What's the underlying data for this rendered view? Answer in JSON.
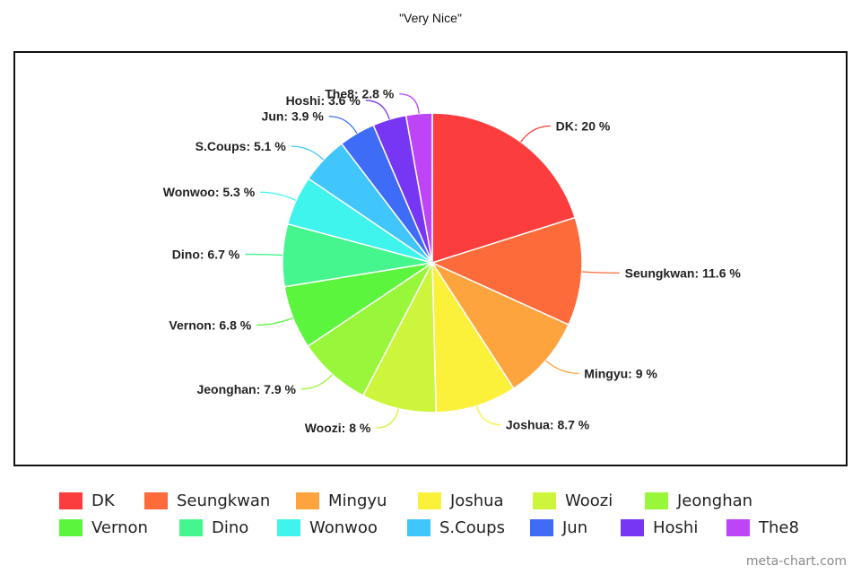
{
  "chart_data": {
    "type": "pie",
    "title": "\"Very Nice\"",
    "legend_position": "bottom",
    "slices": [
      {
        "name": "DK",
        "value": 20,
        "label": "DK: 20 %",
        "color": "#fc3d3d"
      },
      {
        "name": "Seungkwan",
        "value": 11.6,
        "label": "Seungkwan: 11.6 %",
        "color": "#fd6b3a"
      },
      {
        "name": "Mingyu",
        "value": 9,
        "label": "Mingyu: 9 %",
        "color": "#fda43f"
      },
      {
        "name": "Joshua",
        "value": 8.7,
        "label": "Joshua: 8.7 %",
        "color": "#fbf13a"
      },
      {
        "name": "Woozi",
        "value": 8,
        "label": "Woozi: 8 %",
        "color": "#ccf53b"
      },
      {
        "name": "Jeonghan",
        "value": 7.9,
        "label": "Jeonghan: 7.9 %",
        "color": "#98f73a"
      },
      {
        "name": "Vernon",
        "value": 6.8,
        "label": "Vernon: 6.8 %",
        "color": "#5cf53e"
      },
      {
        "name": "Dino",
        "value": 6.7,
        "label": "Dino: 6.7 %",
        "color": "#45f58d"
      },
      {
        "name": "Wonwoo",
        "value": 5.3,
        "label": "Wonwoo: 5.3 %",
        "color": "#3ff4ec"
      },
      {
        "name": "S.Coups",
        "value": 5.1,
        "label": "S.Coups: 5.1 %",
        "color": "#40c6fb"
      },
      {
        "name": "Jun",
        "value": 3.9,
        "label": "Jun: 3.9 %",
        "color": "#3f6cf7"
      },
      {
        "name": "Hoshi",
        "value": 3.6,
        "label": "Hoshi: 3.6 %",
        "color": "#7636f4"
      },
      {
        "name": "The8",
        "value": 2.8,
        "label": "The8: 2.8 %",
        "color": "#be44f7"
      }
    ]
  },
  "watermark": "meta-chart.com"
}
